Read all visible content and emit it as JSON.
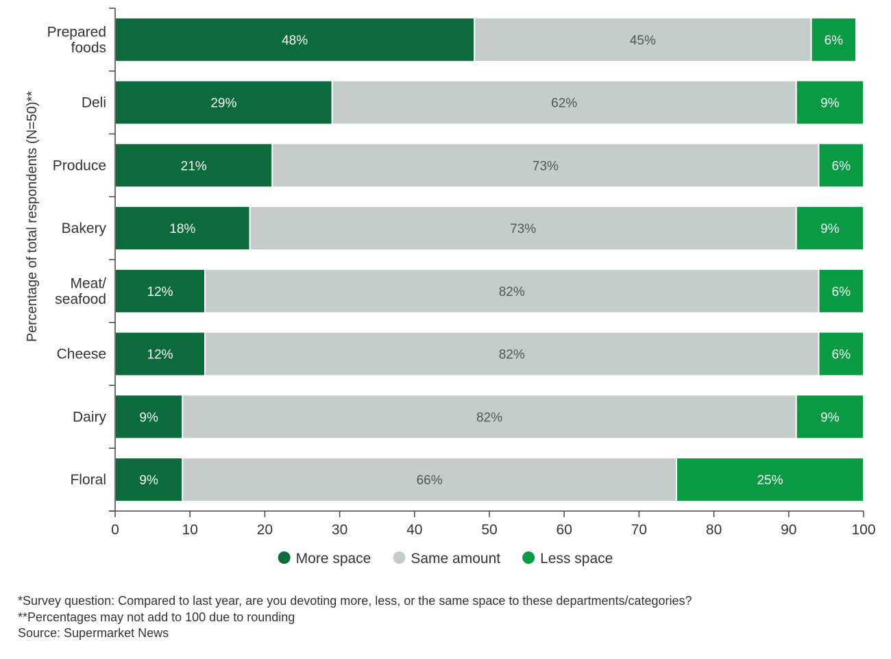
{
  "chart_data": {
    "type": "bar",
    "orientation": "horizontal",
    "stacked": true,
    "categories": [
      [
        "Prepared",
        "foods"
      ],
      [
        "Deli"
      ],
      [
        "Produce"
      ],
      [
        "Bakery"
      ],
      [
        "Meat/",
        "seafood"
      ],
      [
        "Cheese"
      ],
      [
        "Dairy"
      ],
      [
        "Floral"
      ]
    ],
    "series": [
      {
        "name": "More space",
        "color": "#0b6b3a",
        "values": [
          48,
          29,
          21,
          18,
          12,
          12,
          9,
          9
        ],
        "labels": [
          "48%",
          "29%",
          "21%",
          "18%",
          "12%",
          "12%",
          "9%",
          "9%"
        ],
        "label_color": "#ffffff"
      },
      {
        "name": "Same amount",
        "color": "#c5cdca",
        "values": [
          45,
          62,
          73,
          73,
          82,
          82,
          82,
          66
        ],
        "labels": [
          "45%",
          "62%",
          "73%",
          "73%",
          "82%",
          "82%",
          "82%",
          "66%"
        ],
        "label_color": "#555555"
      },
      {
        "name": "Less space",
        "color": "#0a9a44",
        "values": [
          6,
          9,
          6,
          9,
          6,
          6,
          9,
          25
        ],
        "labels": [
          "6%",
          "9%",
          "6%",
          "9%",
          "6%",
          "6%",
          "9%",
          "25%"
        ],
        "label_color": "#ffffff"
      }
    ],
    "ylabel": "Percentage of total respondents (N=50)**",
    "xlabel": "",
    "xlim": [
      0,
      100
    ],
    "xticks": [
      0,
      10,
      20,
      30,
      40,
      50,
      60,
      70,
      80,
      90,
      100
    ],
    "xtick_labels": [
      "0",
      "10",
      "20",
      "30",
      "40",
      "50",
      "60",
      "70",
      "80",
      "90",
      "100"
    ],
    "grid": false,
    "legend_position": "bottom-center"
  },
  "notes": [
    "*Survey question: Compared to last year, are you devoting more, less, or the same space to these departments/categories?",
    "**Percentages may not add to 100 due to rounding",
    "Source: Supermarket News"
  ]
}
